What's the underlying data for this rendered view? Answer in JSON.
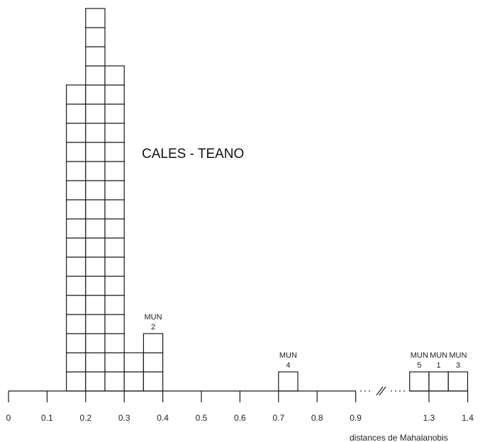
{
  "chart_data": {
    "type": "bar",
    "title": "CALES - TEANO",
    "xlabel": "distances de Mahalanobis",
    "ylabel": "",
    "bin_width": 0.05,
    "x_ticks": [
      "0",
      "0.1",
      "0.2",
      "0.3",
      "0.4",
      "0.5",
      "0.6",
      "0.7",
      "0.8",
      "0.9",
      "1.3",
      "1.4"
    ],
    "axis_break": {
      "from": 0.9,
      "to": 1.3
    },
    "bins": [
      {
        "x": 0.15,
        "count": 16
      },
      {
        "x": 0.2,
        "count": 20
      },
      {
        "x": 0.25,
        "count": 17
      },
      {
        "x": 0.3,
        "count": 2
      },
      {
        "x": 0.35,
        "count": 3,
        "annotations": [
          {
            "row": 3,
            "label": "MUN",
            "number": "2"
          }
        ]
      },
      {
        "x": 0.7,
        "count": 1,
        "annotations": [
          {
            "row": 1,
            "label": "MUN",
            "number": "4"
          }
        ]
      },
      {
        "x": 1.25,
        "count": 1,
        "annotations": [
          {
            "row": 1,
            "label": "MUN",
            "number": "5"
          }
        ]
      },
      {
        "x": 1.3,
        "count": 1,
        "annotations": [
          {
            "row": 1,
            "label": "MUN",
            "number": "1"
          }
        ]
      },
      {
        "x": 1.35,
        "count": 1,
        "annotations": [
          {
            "row": 1,
            "label": "MUN",
            "number": "3"
          }
        ]
      }
    ],
    "grid": false,
    "legend": "none"
  }
}
